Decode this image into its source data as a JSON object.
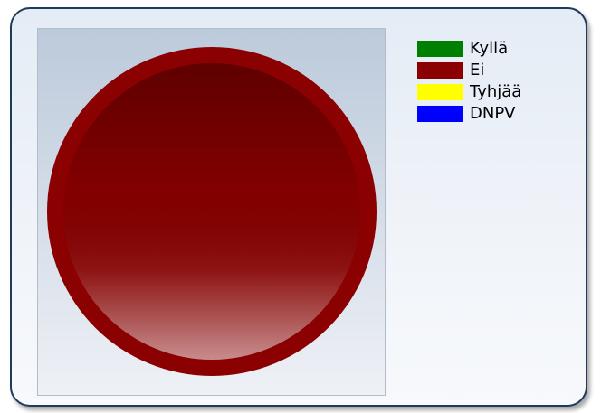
{
  "chart_data": {
    "type": "pie",
    "title": "",
    "slices": [
      {
        "label": "Kyllä",
        "value": 0,
        "color": "#008000"
      },
      {
        "label": "Ei",
        "value": 100,
        "color": "#8b0000"
      },
      {
        "label": "Tyhjää",
        "value": 0,
        "color": "#ffff00"
      },
      {
        "label": "DNPV",
        "value": 0,
        "color": "#0000ff"
      }
    ],
    "legend_position": "right",
    "style": "3d-bevel-gradient"
  }
}
